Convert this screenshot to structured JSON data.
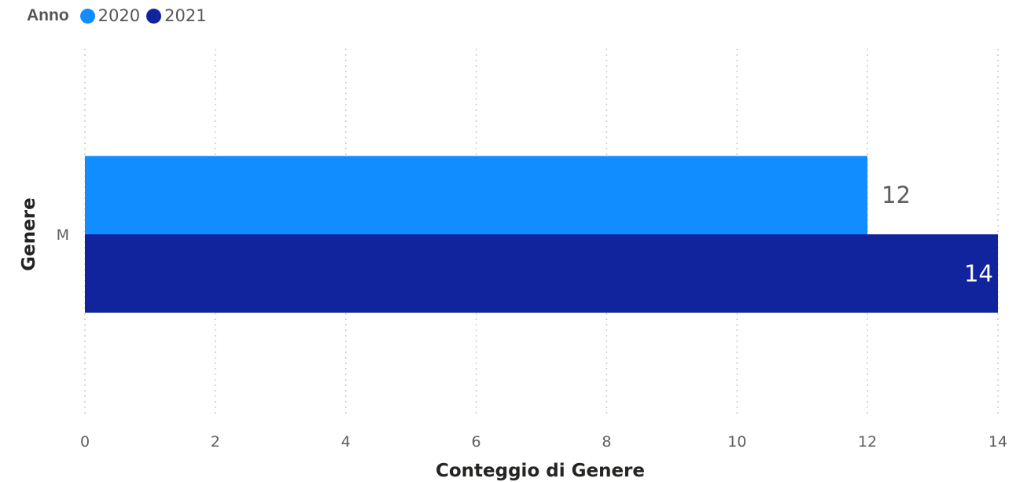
{
  "legend": {
    "title": "Anno",
    "items": [
      {
        "label": "2020",
        "color": "#118DFF"
      },
      {
        "label": "2021",
        "color": "#12239E"
      }
    ]
  },
  "chart_data": {
    "type": "bar",
    "orientation": "horizontal",
    "categories": [
      "M"
    ],
    "series": [
      {
        "name": "2020",
        "values": [
          12
        ],
        "color": "#118DFF"
      },
      {
        "name": "2021",
        "values": [
          14
        ],
        "color": "#12239E"
      }
    ],
    "xlabel": "Conteggio di Genere",
    "ylabel": "Genere",
    "xlim": [
      0,
      14
    ],
    "xticks": [
      0,
      2,
      4,
      6,
      8,
      10,
      12,
      14
    ],
    "grid": true,
    "legend_position": "top-left",
    "data_labels": true
  }
}
